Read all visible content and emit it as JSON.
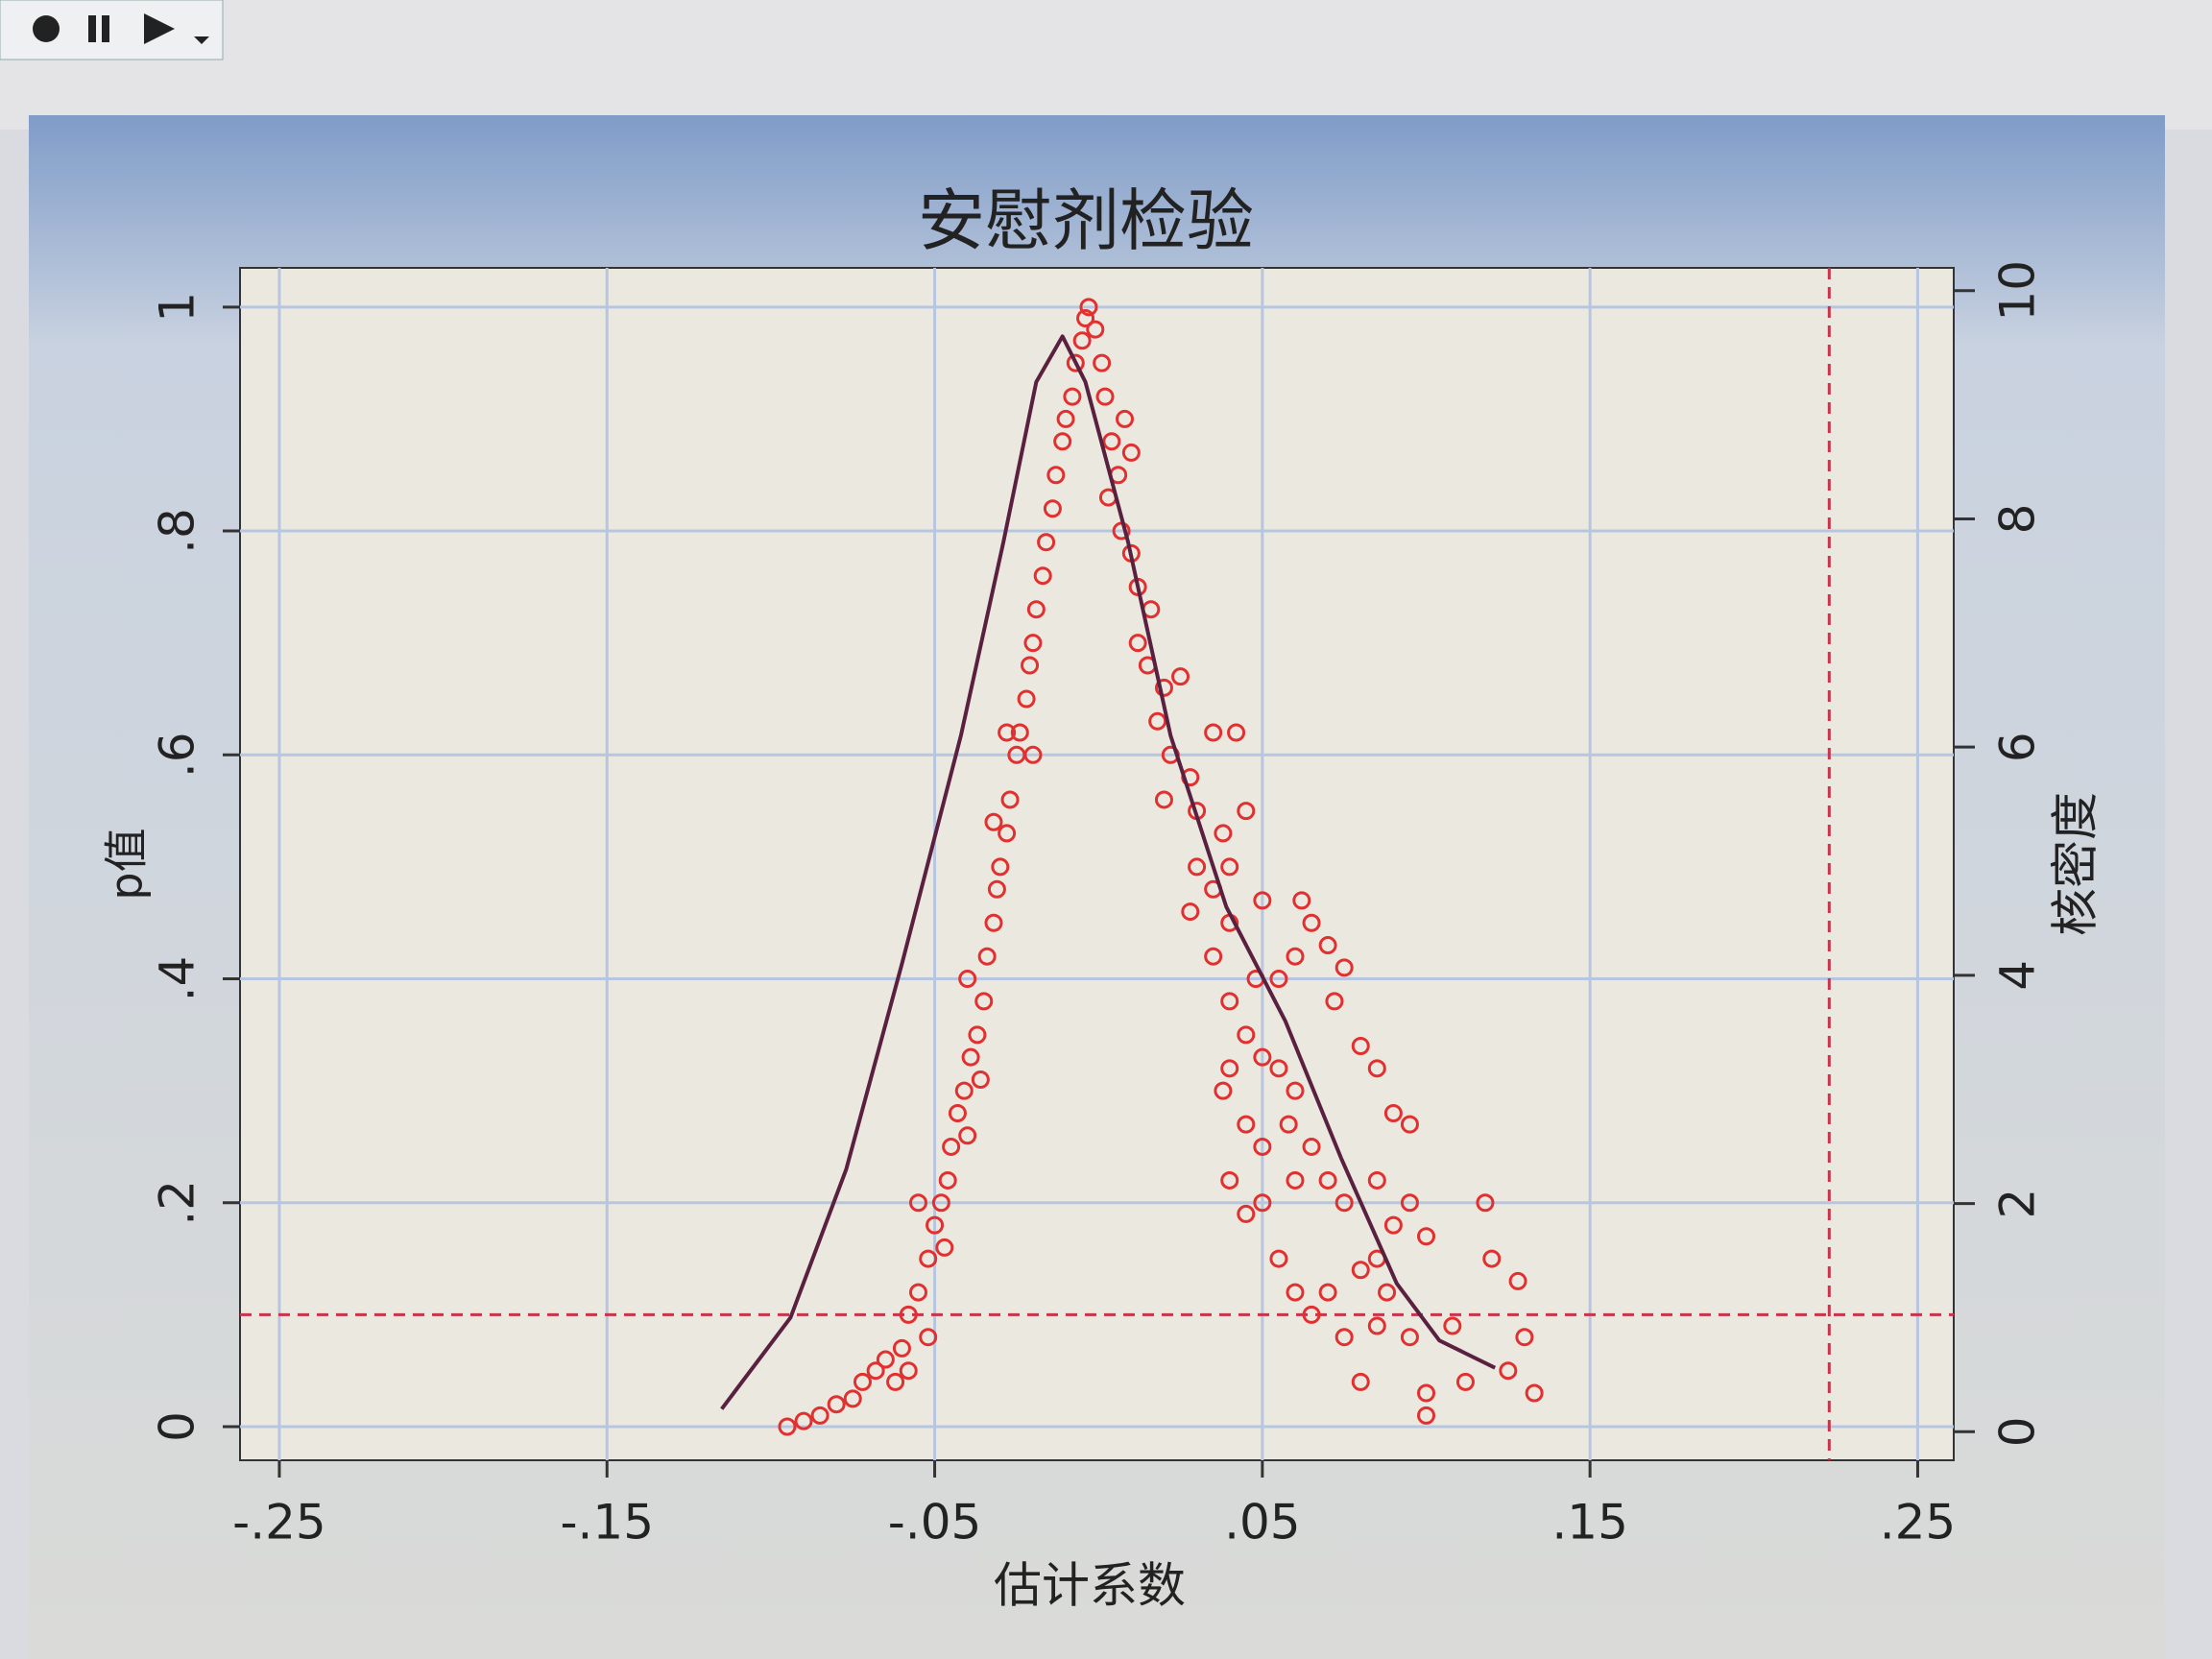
{
  "chart_data": {
    "type": "scatter",
    "title": "安慰剂检验",
    "xlabel": "估计系数",
    "ylabel": "p值",
    "y2label": "核密度",
    "xlim": [
      -0.262,
      0.261
    ],
    "ylim": [
      -0.03,
      1.035
    ],
    "y2lim": [
      -0.25,
      10.2
    ],
    "xticks": [
      {
        "value": -0.25,
        "label": "-.25"
      },
      {
        "value": -0.15,
        "label": "-.15"
      },
      {
        "value": -0.05,
        "label": "-.05"
      },
      {
        "value": 0.05,
        "label": ".05"
      },
      {
        "value": 0.15,
        "label": ".15"
      },
      {
        "value": 0.25,
        "label": ".25"
      }
    ],
    "yticks": [
      0,
      {
        "value": 0.2,
        "label": ".2"
      },
      {
        "value": 0.4,
        "label": ".4"
      },
      {
        "value": 0.6,
        "label": ".6"
      },
      {
        "value": 0.8,
        "label": ".8"
      },
      1
    ],
    "y2ticks": [
      0,
      2,
      4,
      6,
      8,
      10
    ],
    "grid": true,
    "hline": 0.1,
    "vline": 0.223,
    "ref_color": "#c8344c",
    "series": [
      {
        "type": "scatter",
        "color": "#e23030",
        "x": [
          -0.095,
          -0.09,
          -0.085,
          -0.08,
          -0.075,
          -0.072,
          -0.068,
          -0.065,
          -0.06,
          -0.058,
          -0.055,
          -0.052,
          -0.05,
          -0.048,
          -0.046,
          -0.055,
          -0.045,
          -0.043,
          -0.041,
          -0.039,
          -0.037,
          -0.04,
          -0.035,
          -0.034,
          -0.032,
          -0.031,
          -0.03,
          -0.028,
          -0.027,
          -0.025,
          -0.024,
          -0.028,
          -0.022,
          -0.021,
          -0.02,
          -0.019,
          -0.017,
          -0.016,
          -0.014,
          -0.013,
          -0.011,
          -0.01,
          -0.008,
          -0.007,
          -0.005,
          -0.004,
          -0.003,
          -0.062,
          -0.058,
          -0.052,
          -0.047,
          -0.04,
          -0.036,
          -0.02,
          -0.032,
          -0.001,
          0.001,
          0.002,
          0.004,
          0.006,
          0.008,
          0.01,
          0.003,
          0.007,
          0.01,
          0.012,
          0.016,
          0.012,
          0.015,
          0.02,
          0.025,
          0.018,
          0.022,
          0.028,
          0.035,
          0.042,
          0.02,
          0.03,
          0.038,
          0.045,
          0.03,
          0.035,
          0.04,
          0.028,
          0.04,
          0.05,
          0.062,
          0.065,
          0.035,
          0.04,
          0.048,
          0.055,
          0.06,
          0.07,
          0.075,
          0.072,
          0.045,
          0.05,
          0.04,
          0.038,
          0.055,
          0.06,
          0.045,
          0.05,
          0.058,
          0.06,
          0.065,
          0.07,
          0.075,
          0.08,
          0.085,
          0.09,
          0.095,
          0.04,
          0.045,
          0.05,
          0.055,
          0.06,
          0.065,
          0.07,
          0.08,
          0.085,
          0.09,
          0.095,
          0.1,
          0.075,
          0.085,
          0.08,
          0.095,
          0.1,
          0.1,
          0.108,
          0.112,
          0.118,
          0.12,
          0.128,
          0.125,
          0.13,
          0.133,
          0.085,
          0.088
        ],
        "values": [
          0.0,
          0.005,
          0.01,
          0.02,
          0.025,
          0.04,
          0.05,
          0.06,
          0.07,
          0.1,
          0.12,
          0.15,
          0.18,
          0.2,
          0.22,
          0.2,
          0.25,
          0.28,
          0.3,
          0.33,
          0.35,
          0.4,
          0.38,
          0.42,
          0.45,
          0.48,
          0.5,
          0.53,
          0.56,
          0.6,
          0.62,
          0.62,
          0.65,
          0.68,
          0.7,
          0.73,
          0.76,
          0.79,
          0.82,
          0.85,
          0.88,
          0.9,
          0.92,
          0.95,
          0.97,
          0.99,
          1.0,
          0.04,
          0.05,
          0.08,
          0.16,
          0.26,
          0.31,
          0.6,
          0.54,
          0.98,
          0.95,
          0.92,
          0.88,
          0.85,
          0.9,
          0.87,
          0.83,
          0.8,
          0.78,
          0.75,
          0.73,
          0.7,
          0.68,
          0.66,
          0.67,
          0.63,
          0.6,
          0.58,
          0.62,
          0.62,
          0.56,
          0.55,
          0.53,
          0.55,
          0.5,
          0.48,
          0.5,
          0.46,
          0.45,
          0.47,
          0.47,
          0.45,
          0.42,
          0.38,
          0.4,
          0.4,
          0.42,
          0.43,
          0.41,
          0.38,
          0.35,
          0.33,
          0.32,
          0.3,
          0.32,
          0.3,
          0.27,
          0.25,
          0.27,
          0.22,
          0.25,
          0.22,
          0.2,
          0.34,
          0.32,
          0.28,
          0.27,
          0.22,
          0.19,
          0.2,
          0.15,
          0.12,
          0.1,
          0.12,
          0.14,
          0.15,
          0.18,
          0.2,
          0.17,
          0.08,
          0.09,
          0.04,
          0.08,
          0.03,
          0.01,
          0.09,
          0.04,
          0.2,
          0.15,
          0.13,
          0.05,
          0.08,
          0.03,
          0.22,
          0.12
        ]
      },
      {
        "type": "line",
        "axis": "y2",
        "color": "#5a2040",
        "x": [
          -0.115,
          -0.094,
          -0.077,
          -0.06,
          -0.042,
          -0.029,
          -0.019,
          -0.011,
          -0.004,
          0.009,
          0.022,
          0.039,
          0.057,
          0.074,
          0.091,
          0.104,
          0.121
        ],
        "values": [
          0.2,
          1.0,
          2.3,
          4.1,
          6.1,
          7.8,
          9.2,
          9.6,
          9.2,
          7.8,
          6.1,
          4.6,
          3.6,
          2.4,
          1.3,
          0.8,
          0.56
        ]
      }
    ]
  }
}
